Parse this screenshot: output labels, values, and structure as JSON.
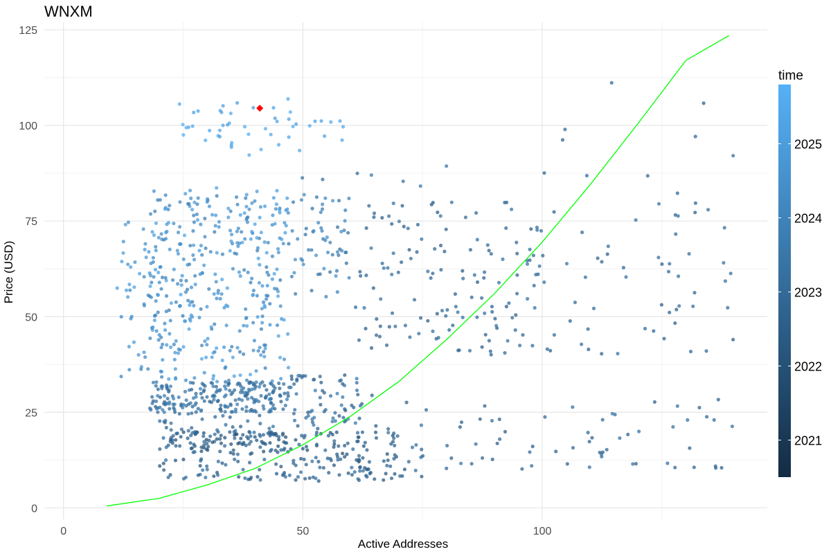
{
  "chart_data": {
    "type": "scatter",
    "title": "WNXM",
    "xlabel": "Active Addresses",
    "ylabel": "Price (USD)",
    "xlim": [
      -4,
      147
    ],
    "ylim": [
      -3,
      127
    ],
    "x_ticks": [
      0,
      50,
      100
    ],
    "y_ticks": [
      0,
      25,
      50,
      75,
      100,
      125
    ],
    "grid": true,
    "legend": {
      "title": "time",
      "type": "colorbar",
      "position": "right",
      "range": [
        2020.5,
        2025.8
      ],
      "ticks": [
        2021,
        2022,
        2023,
        2024,
        2025
      ],
      "color_low": "#132B43",
      "color_high": "#56B1F7"
    },
    "fit_curve": {
      "color": "#00ff00",
      "points": [
        [
          9,
          0.5
        ],
        [
          20,
          2.5
        ],
        [
          30,
          6.0
        ],
        [
          40,
          10.3
        ],
        [
          50,
          16.5
        ],
        [
          60,
          24.0
        ],
        [
          70,
          33.0
        ],
        [
          80,
          44.0
        ],
        [
          90,
          56.0
        ],
        [
          100,
          69.5
        ],
        [
          110,
          84.5
        ],
        [
          120,
          100.5
        ],
        [
          130,
          117.0
        ],
        [
          139,
          123.5
        ]
      ]
    },
    "highlight_point": {
      "x": 41,
      "y": 104.5,
      "color": "#ff0000",
      "shape": "diamond"
    },
    "point_color": "#4a8fd4",
    "clusters": [
      {
        "x": [
          22,
          35
        ],
        "y": [
          95,
          107
        ],
        "t": [
          2025.0,
          2025.8
        ],
        "n": 20
      },
      {
        "x": [
          35,
          50
        ],
        "y": [
          90,
          107
        ],
        "t": [
          2025.0,
          2025.8
        ],
        "n": 22
      },
      {
        "x": [
          50,
          62
        ],
        "y": [
          95,
          104
        ],
        "t": [
          2025.0,
          2025.6
        ],
        "n": 8
      },
      {
        "x": [
          10,
          20
        ],
        "y": [
          55,
          75
        ],
        "t": [
          2024.2,
          2025.2
        ],
        "n": 28
      },
      {
        "x": [
          18,
          47
        ],
        "y": [
          55,
          84
        ],
        "t": [
          2023.8,
          2025.3
        ],
        "n": 220
      },
      {
        "x": [
          47,
          60
        ],
        "y": [
          55,
          82
        ],
        "t": [
          2023.3,
          2024.6
        ],
        "n": 60
      },
      {
        "x": [
          18,
          47
        ],
        "y": [
          33,
          55
        ],
        "t": [
          2023.8,
          2025.3
        ],
        "n": 130
      },
      {
        "x": [
          12,
          25
        ],
        "y": [
          34,
          55
        ],
        "t": [
          2024.0,
          2025.0
        ],
        "n": 25
      },
      {
        "x": [
          18,
          47
        ],
        "y": [
          25,
          33
        ],
        "t": [
          2022.8,
          2023.9
        ],
        "n": 210
      },
      {
        "x": [
          47,
          62
        ],
        "y": [
          22,
          35
        ],
        "t": [
          2022.5,
          2023.7
        ],
        "n": 60
      },
      {
        "x": [
          20,
          47
        ],
        "y": [
          14,
          20
        ],
        "t": [
          2022.0,
          2023.2
        ],
        "n": 120
      },
      {
        "x": [
          47,
          70
        ],
        "y": [
          12,
          20
        ],
        "t": [
          2022.0,
          2023.2
        ],
        "n": 60
      },
      {
        "x": [
          20,
          75
        ],
        "y": [
          7,
          13
        ],
        "t": [
          2022.2,
          2023.3
        ],
        "n": 100
      },
      {
        "x": [
          20,
          55
        ],
        "y": [
          18,
          25
        ],
        "t": [
          2022.5,
          2023.4
        ],
        "n": 40
      },
      {
        "x": [
          60,
          100
        ],
        "y": [
          40,
          80
        ],
        "t": [
          2022.5,
          2023.4
        ],
        "n": 140
      },
      {
        "x": [
          60,
          100
        ],
        "y": [
          8,
          30
        ],
        "t": [
          2022.5,
          2023.4
        ],
        "n": 40
      },
      {
        "x": [
          100,
          140
        ],
        "y": [
          40,
          80
        ],
        "t": [
          2022.6,
          2023.4
        ],
        "n": 55
      },
      {
        "x": [
          100,
          140
        ],
        "y": [
          10,
          30
        ],
        "t": [
          2022.6,
          2023.4
        ],
        "n": 38
      },
      {
        "x": [
          100,
          140
        ],
        "y": [
          80,
          115
        ],
        "t": [
          2022.6,
          2023.2
        ],
        "n": 10
      },
      {
        "x": [
          45,
          80
        ],
        "y": [
          80,
          90
        ],
        "t": [
          2023.0,
          2023.6
        ],
        "n": 8
      }
    ]
  }
}
